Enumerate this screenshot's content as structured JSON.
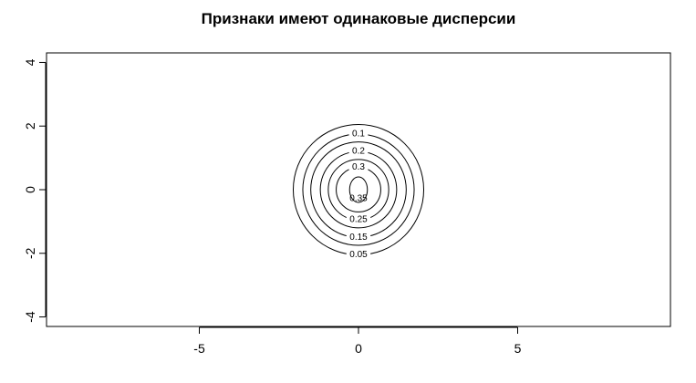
{
  "chart_data": {
    "type": "contour",
    "title": "Признаки имеют одинаковые дисперсии",
    "xlabel": "",
    "ylabel": "",
    "xlim": [
      -9.8,
      9.8
    ],
    "ylim": [
      -4.3,
      4.3
    ],
    "x_ticks": [
      -5,
      0,
      5
    ],
    "x_tick_labels": [
      "-5",
      "0",
      "5"
    ],
    "y_ticks": [
      -4,
      -2,
      0,
      2,
      4
    ],
    "y_tick_labels": [
      "-4",
      "-2",
      "0",
      "2",
      "4"
    ],
    "center": [
      0,
      0
    ],
    "grid": false,
    "contours": [
      {
        "level": 0.05,
        "label": "0.05",
        "radius": 2.05,
        "label_position": "bottom"
      },
      {
        "level": 0.1,
        "label": "0.1",
        "radius": 1.75,
        "label_position": "top"
      },
      {
        "level": 0.15,
        "label": "0.15",
        "radius": 1.5,
        "label_position": "bottom"
      },
      {
        "level": 0.2,
        "label": "0.2",
        "radius": 1.2,
        "label_position": "top"
      },
      {
        "level": 0.25,
        "label": "0.25",
        "radius": 0.95,
        "label_position": "bottom"
      },
      {
        "level": 0.3,
        "label": "0.3",
        "radius": 0.7,
        "label_position": "top"
      },
      {
        "level": 0.35,
        "label": "0.35",
        "radius": 0.4,
        "label_position": "inside"
      }
    ]
  }
}
